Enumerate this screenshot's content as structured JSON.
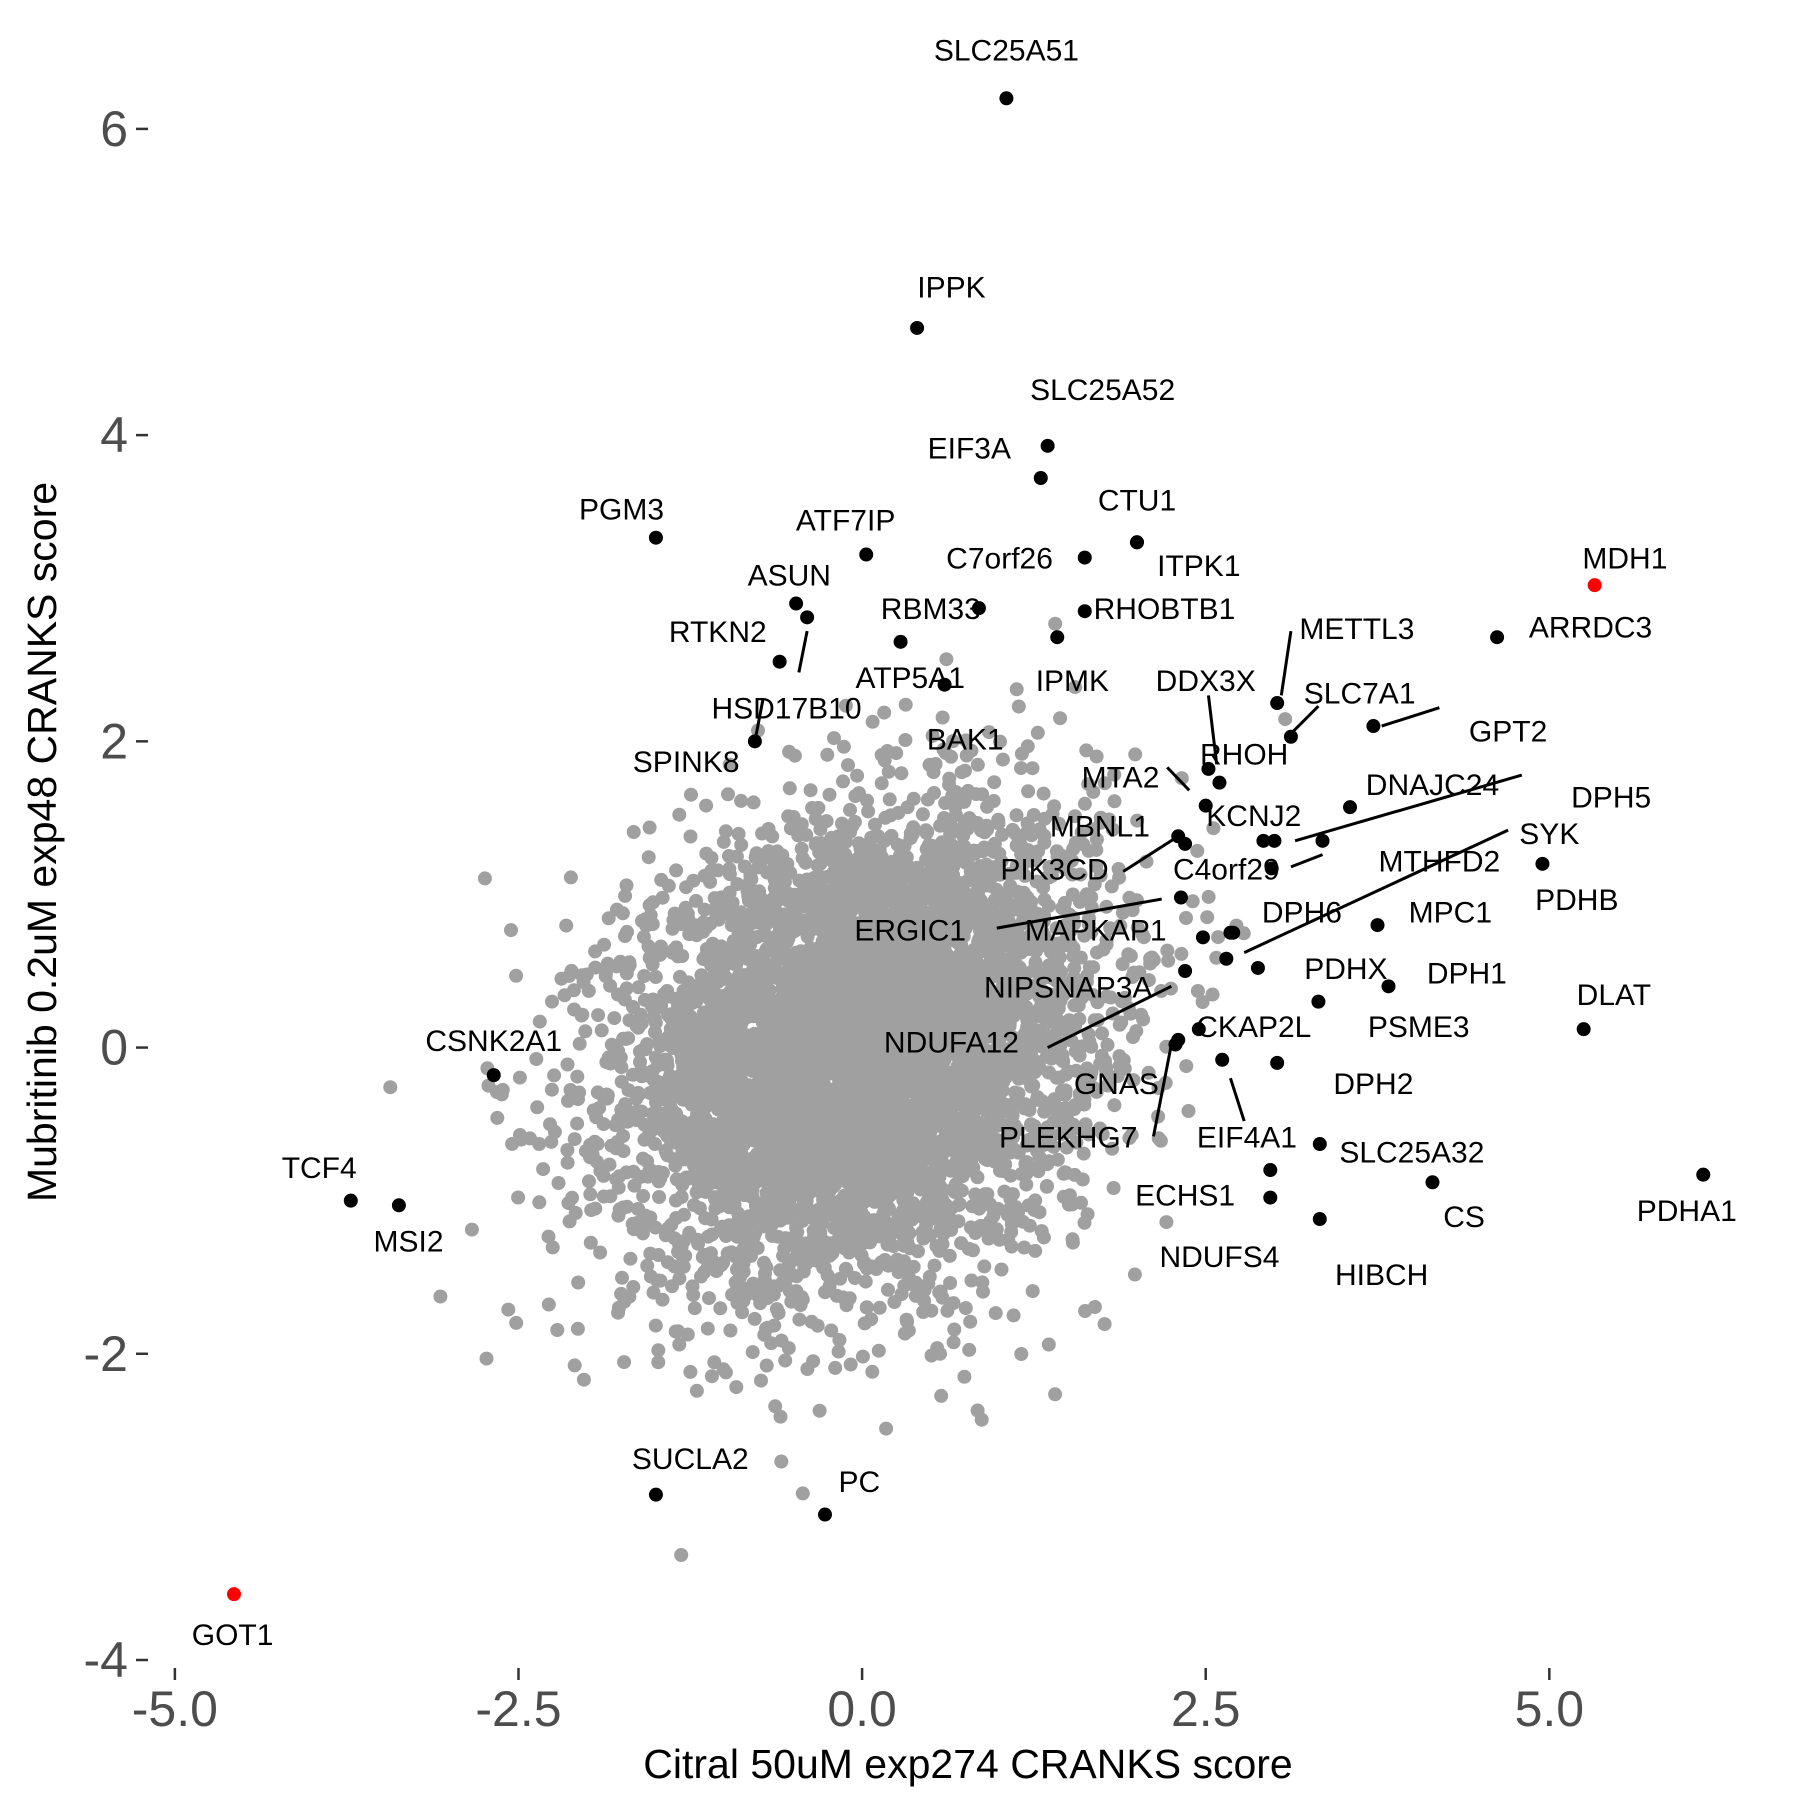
{
  "chart_data": {
    "type": "scatter",
    "title": "",
    "xlabel": "Citral 50uM exp274 CRANKS score",
    "ylabel": "Mubritinib 0.2uM exp48 CRANKS score",
    "xlim": [
      -5.05,
      6.3
    ],
    "ylim": [
      -4.0,
      6.45
    ],
    "x_ticks": [
      -5.0,
      -2.5,
      0.0,
      2.5,
      5.0
    ],
    "x_tick_labels": [
      "-5.0",
      "-2.5",
      "0.0",
      "2.5",
      "5.0"
    ],
    "y_ticks": [
      -4,
      -2,
      0,
      2,
      4,
      6
    ],
    "y_tick_labels": [
      "-4",
      "-2",
      "0",
      "2",
      "4",
      "6"
    ],
    "grid": false,
    "colors": {
      "background": "#grey-cloud-ignored",
      "cloud": "#a0a0a0",
      "highlight": "#000000",
      "control": "#ff0000"
    },
    "background_cloud": {
      "description_count": 6000,
      "x_mean": 0.0,
      "y_mean": 0.0,
      "x_sd": 0.85,
      "y_sd": 0.75,
      "correlation": 0.2
    },
    "series": [
      {
        "points": [
          {
            "gene": "SLC25A51",
            "x": 1.05,
            "y": 6.2,
            "color": "black"
          },
          {
            "gene": "IPPK",
            "x": 0.4,
            "y": 4.7,
            "color": "black"
          },
          {
            "gene": "SLC25A52",
            "x": 1.35,
            "y": 3.93,
            "color": "black"
          },
          {
            "gene": "EIF3A",
            "x": 1.3,
            "y": 3.72,
            "color": "black"
          },
          {
            "gene": "CTU1",
            "x": 2.0,
            "y": 3.3,
            "color": "black"
          },
          {
            "gene": "PGM3",
            "x": -1.5,
            "y": 3.33,
            "color": "black"
          },
          {
            "gene": "ATF7IP",
            "x": 0.03,
            "y": 3.22,
            "color": "black"
          },
          {
            "gene": "C7orf26",
            "x": 1.62,
            "y": 3.2,
            "color": "black"
          },
          {
            "gene": "ITPK1",
            "x": 2.0,
            "y": 3.3,
            "color": "black"
          },
          {
            "gene": "MDH1",
            "x": 5.33,
            "y": 3.02,
            "color": "red"
          },
          {
            "gene": "ASUN",
            "x": -0.48,
            "y": 2.9,
            "color": "black"
          },
          {
            "gene": "RBM33",
            "x": 0.85,
            "y": 2.87,
            "color": "black"
          },
          {
            "gene": "RHOBTB1",
            "x": 1.62,
            "y": 2.85,
            "color": "black"
          },
          {
            "gene": "RTKN2",
            "x": -0.4,
            "y": 2.81,
            "color": "black"
          },
          {
            "gene": "METTL3",
            "x": 3.02,
            "y": 2.25,
            "color": "black"
          },
          {
            "gene": "ARRDC3",
            "x": 4.62,
            "y": 2.68,
            "color": "black"
          },
          {
            "gene": "ATP5A1",
            "x": 0.28,
            "y": 2.65,
            "color": "black"
          },
          {
            "gene": "IPMK",
            "x": 1.42,
            "y": 2.68,
            "color": "black"
          },
          {
            "gene": "HSD17B10",
            "x": -0.6,
            "y": 2.52,
            "color": "black"
          },
          {
            "gene": "DDX3X",
            "x": 2.52,
            "y": 1.82,
            "color": "black"
          },
          {
            "gene": "SLC7A1",
            "x": 3.12,
            "y": 2.03,
            "color": "black"
          },
          {
            "gene": "BAK1",
            "x": 0.6,
            "y": 2.37,
            "color": "black"
          },
          {
            "gene": "GPT2",
            "x": 3.72,
            "y": 2.1,
            "color": "black"
          },
          {
            "gene": "SPINK8",
            "x": -0.78,
            "y": 2.0,
            "color": "black"
          },
          {
            "gene": "RHOH",
            "x": 2.6,
            "y": 1.73,
            "color": "black"
          },
          {
            "gene": "DNAJC24",
            "x": 3.55,
            "y": 1.57,
            "color": "black"
          },
          {
            "gene": "MTA2",
            "x": 2.5,
            "y": 1.58,
            "color": "black"
          },
          {
            "gene": "DPH5",
            "x": 3.35,
            "y": 1.35,
            "color": "black"
          },
          {
            "gene": "KCNJ2",
            "x": 3.0,
            "y": 1.35,
            "color": "black"
          },
          {
            "gene": "MBNL1",
            "x": 2.3,
            "y": 1.38,
            "color": "black"
          },
          {
            "gene": "SYK",
            "x": 2.68,
            "y": 0.75,
            "color": "black"
          },
          {
            "gene": "MTHFD2",
            "x": 2.98,
            "y": 1.17,
            "color": "black"
          },
          {
            "gene": "PIK3CD",
            "x": 2.35,
            "y": 1.33,
            "color": "black"
          },
          {
            "gene": "C4orf29",
            "x": 2.92,
            "y": 1.35,
            "color": "black"
          },
          {
            "gene": "PDHB",
            "x": 4.95,
            "y": 1.2,
            "color": "black"
          },
          {
            "gene": "ERGIC1",
            "x": 2.32,
            "y": 0.98,
            "color": "black"
          },
          {
            "gene": "DPH6",
            "x": 2.7,
            "y": 0.75,
            "color": "black"
          },
          {
            "gene": "MPC1",
            "x": 3.75,
            "y": 0.8,
            "color": "black"
          },
          {
            "gene": "MAPKAP1",
            "x": 2.48,
            "y": 0.72,
            "color": "black"
          },
          {
            "gene": "PDHX",
            "x": 3.32,
            "y": 0.3,
            "color": "black"
          },
          {
            "gene": "DPH1",
            "x": 3.83,
            "y": 0.4,
            "color": "black"
          },
          {
            "gene": "NIPSNAP3A",
            "x": 2.35,
            "y": 0.5,
            "color": "black"
          },
          {
            "gene": "DLAT",
            "x": 5.25,
            "y": 0.12,
            "color": "black"
          },
          {
            "gene": "PSME3",
            "x": 2.88,
            "y": 0.52,
            "color": "black"
          },
          {
            "gene": "NDUFA12",
            "x": 2.65,
            "y": 0.58,
            "color": "black"
          },
          {
            "gene": "CKAP2L",
            "x": 2.45,
            "y": 0.12,
            "color": "black"
          },
          {
            "gene": "CSNK2A1",
            "x": -2.68,
            "y": -0.18,
            "color": "black"
          },
          {
            "gene": "DPH2",
            "x": 3.02,
            "y": -0.1,
            "color": "black"
          },
          {
            "gene": "GNAS",
            "x": 2.3,
            "y": 0.05,
            "color": "black"
          },
          {
            "gene": "PLEKHG7",
            "x": 2.28,
            "y": 0.02,
            "color": "black"
          },
          {
            "gene": "EIF4A1",
            "x": 2.62,
            "y": -0.08,
            "color": "black"
          },
          {
            "gene": "SLC25A32",
            "x": 3.33,
            "y": -0.63,
            "color": "black"
          },
          {
            "gene": "TCF4",
            "x": -3.72,
            "y": -1.0,
            "color": "black"
          },
          {
            "gene": "MSI2",
            "x": -3.37,
            "y": -1.03,
            "color": "black"
          },
          {
            "gene": "ECHS1",
            "x": 2.97,
            "y": -0.8,
            "color": "black"
          },
          {
            "gene": "PDHA1",
            "x": 6.12,
            "y": -0.83,
            "color": "black"
          },
          {
            "gene": "CS",
            "x": 4.15,
            "y": -0.88,
            "color": "black"
          },
          {
            "gene": "NDUFS4",
            "x": 2.97,
            "y": -0.98,
            "color": "black"
          },
          {
            "gene": "HIBCH",
            "x": 3.33,
            "y": -1.12,
            "color": "black"
          },
          {
            "gene": "SUCLA2",
            "x": -1.5,
            "y": -2.92,
            "color": "black"
          },
          {
            "gene": "PC",
            "x": -0.27,
            "y": -3.05,
            "color": "black"
          },
          {
            "gene": "GOT1",
            "x": -4.57,
            "y": -3.57,
            "color": "red"
          }
        ]
      }
    ],
    "labels": [
      {
        "text": "SLC25A51",
        "x": 1.05,
        "y": 6.5
      },
      {
        "text": "IPPK",
        "x": 0.65,
        "y": 4.95
      },
      {
        "text": "SLC25A52",
        "x": 1.75,
        "y": 4.28
      },
      {
        "text": "EIF3A",
        "x": 0.78,
        "y": 3.9
      },
      {
        "text": "CTU1",
        "x": 2.0,
        "y": 3.56
      },
      {
        "text": "PGM3",
        "x": -1.75,
        "y": 3.5
      },
      {
        "text": "ATF7IP",
        "x": -0.12,
        "y": 3.43
      },
      {
        "text": "C7orf26",
        "x": 1.0,
        "y": 3.18
      },
      {
        "text": "ITPK1",
        "x": 2.45,
        "y": 3.13
      },
      {
        "text": "MDH1",
        "x": 5.55,
        "y": 3.18
      },
      {
        "text": "ASUN",
        "x": -0.53,
        "y": 3.07
      },
      {
        "text": "RBM33",
        "x": 0.5,
        "y": 2.85
      },
      {
        "text": "RHOBTB1",
        "x": 2.2,
        "y": 2.85
      },
      {
        "text": "RTKN2",
        "x": -1.05,
        "y": 2.7
      },
      {
        "text": "METTL3",
        "x": 3.6,
        "y": 2.72
      },
      {
        "text": "ARRDC3",
        "x": 5.3,
        "y": 2.73
      },
      {
        "text": "ATP5A1",
        "x": 0.35,
        "y": 2.4
      },
      {
        "text": "IPMK",
        "x": 1.53,
        "y": 2.38
      },
      {
        "text": "DDX3X",
        "x": 2.5,
        "y": 2.38
      },
      {
        "text": "SLC7A1",
        "x": 3.62,
        "y": 2.3
      },
      {
        "text": "HSD17B10",
        "x": -0.55,
        "y": 2.2
      },
      {
        "text": "GPT2",
        "x": 4.7,
        "y": 2.05
      },
      {
        "text": "BAK1",
        "x": 0.75,
        "y": 2.0
      },
      {
        "text": "SPINK8",
        "x": -1.28,
        "y": 1.85
      },
      {
        "text": "RHOH",
        "x": 2.78,
        "y": 1.9
      },
      {
        "text": "MTA2",
        "x": 1.88,
        "y": 1.75
      },
      {
        "text": "DNAJC24",
        "x": 4.15,
        "y": 1.7
      },
      {
        "text": "DPH5",
        "x": 5.45,
        "y": 1.62
      },
      {
        "text": "KCNJ2",
        "x": 2.85,
        "y": 1.5
      },
      {
        "text": "MBNL1",
        "x": 1.73,
        "y": 1.43
      },
      {
        "text": "SYK",
        "x": 5.0,
        "y": 1.38
      },
      {
        "text": "MTHFD2",
        "x": 4.2,
        "y": 1.2
      },
      {
        "text": "PIK3CD",
        "x": 1.4,
        "y": 1.15
      },
      {
        "text": "C4orf29",
        "x": 2.65,
        "y": 1.15
      },
      {
        "text": "PDHB",
        "x": 5.2,
        "y": 0.95
      },
      {
        "text": "ERGIC1",
        "x": 0.35,
        "y": 0.75
      },
      {
        "text": "DPH6",
        "x": 3.2,
        "y": 0.87
      },
      {
        "text": "MPC1",
        "x": 4.28,
        "y": 0.87
      },
      {
        "text": "MAPKAP1",
        "x": 1.7,
        "y": 0.75
      },
      {
        "text": "PDHX",
        "x": 3.52,
        "y": 0.5
      },
      {
        "text": "DPH1",
        "x": 4.4,
        "y": 0.47
      },
      {
        "text": "NIPSNAP3A",
        "x": 1.5,
        "y": 0.38
      },
      {
        "text": "DLAT",
        "x": 5.47,
        "y": 0.33
      },
      {
        "text": "PSME3",
        "x": 4.05,
        "y": 0.12
      },
      {
        "text": "NDUFA12",
        "x": 0.65,
        "y": 0.02
      },
      {
        "text": "CKAP2L",
        "x": 2.85,
        "y": 0.12
      },
      {
        "text": "CSNK2A1",
        "x": -2.68,
        "y": 0.03
      },
      {
        "text": "DPH2",
        "x": 3.72,
        "y": -0.25
      },
      {
        "text": "GNAS",
        "x": 1.85,
        "y": -0.25
      },
      {
        "text": "PLEKHG7",
        "x": 1.5,
        "y": -0.6
      },
      {
        "text": "EIF4A1",
        "x": 2.8,
        "y": -0.6
      },
      {
        "text": "SLC25A32",
        "x": 4.0,
        "y": -0.7
      },
      {
        "text": "TCF4",
        "x": -3.95,
        "y": -0.8
      },
      {
        "text": "MSI2",
        "x": -3.3,
        "y": -1.28
      },
      {
        "text": "ECHS1",
        "x": 2.35,
        "y": -0.98
      },
      {
        "text": "PDHA1",
        "x": 6.0,
        "y": -1.08
      },
      {
        "text": "CS",
        "x": 4.38,
        "y": -1.12
      },
      {
        "text": "NDUFS4",
        "x": 2.6,
        "y": -1.38
      },
      {
        "text": "HIBCH",
        "x": 3.78,
        "y": -1.5
      },
      {
        "text": "SUCLA2",
        "x": -1.25,
        "y": -2.7
      },
      {
        "text": "PC",
        "x": -0.02,
        "y": -2.85
      },
      {
        "text": "GOT1",
        "x": -4.58,
        "y": -3.85
      }
    ],
    "leader_lines": [
      {
        "x1": -0.4,
        "y1": 2.72,
        "x2": -0.46,
        "y2": 2.45
      },
      {
        "x1": -0.72,
        "y1": 2.28,
        "x2": -0.78,
        "y2": 2.0
      },
      {
        "x1": 3.12,
        "y1": 2.72,
        "x2": 3.05,
        "y2": 2.3
      },
      {
        "x1": 3.12,
        "y1": 2.05,
        "x2": 3.32,
        "y2": 2.23
      },
      {
        "x1": 3.78,
        "y1": 2.1,
        "x2": 4.2,
        "y2": 2.22
      },
      {
        "x1": 2.52,
        "y1": 2.3,
        "x2": 2.58,
        "y2": 1.85
      },
      {
        "x1": 2.22,
        "y1": 1.83,
        "x2": 2.38,
        "y2": 1.68
      },
      {
        "x1": 3.15,
        "y1": 1.35,
        "x2": 4.8,
        "y2": 1.78
      },
      {
        "x1": 3.12,
        "y1": 1.18,
        "x2": 3.35,
        "y2": 1.26
      },
      {
        "x1": 1.9,
        "y1": 1.15,
        "x2": 2.3,
        "y2": 1.38
      },
      {
        "x1": 0.98,
        "y1": 0.78,
        "x2": 2.18,
        "y2": 0.97
      },
      {
        "x1": 2.78,
        "y1": 0.62,
        "x2": 4.7,
        "y2": 1.42
      },
      {
        "x1": 1.35,
        "y1": 0.0,
        "x2": 2.25,
        "y2": 0.4
      },
      {
        "x1": 2.12,
        "y1": -0.58,
        "x2": 2.25,
        "y2": 0.02
      },
      {
        "x1": 2.68,
        "y1": -0.2,
        "x2": 2.78,
        "y2": -0.48
      }
    ]
  }
}
